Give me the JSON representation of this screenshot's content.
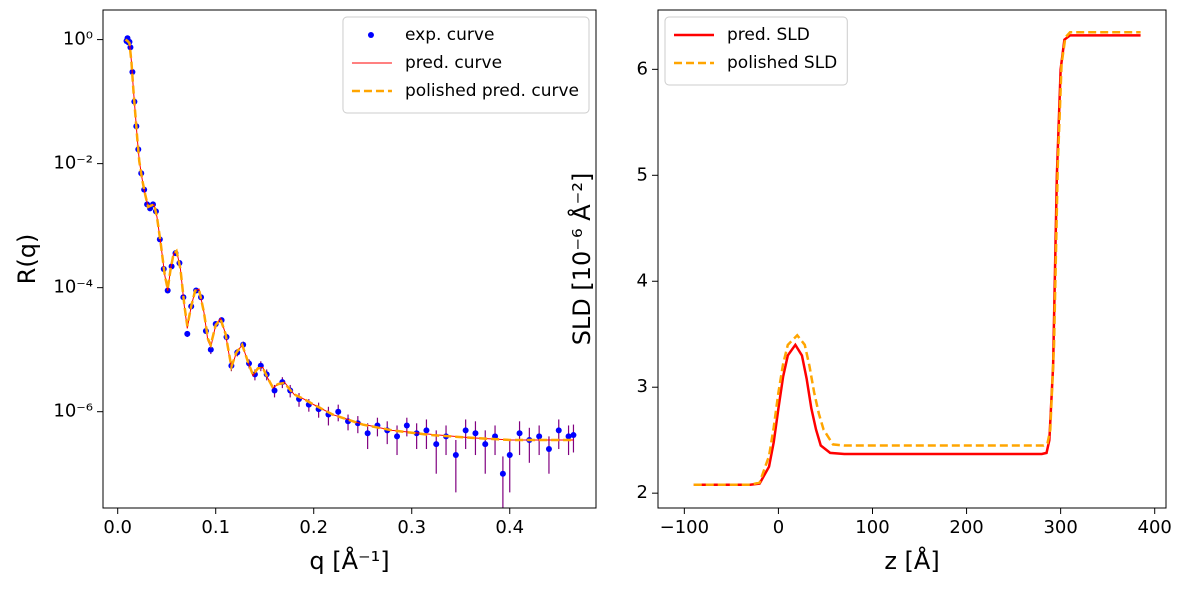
{
  "chart_data": [
    {
      "type": "scatter",
      "xlabel": "q [Å⁻¹]",
      "ylabel": "R(q)",
      "log_y": true,
      "legend": "upper right",
      "xlim": [
        -0.015,
        0.488
      ],
      "ylim": [
        2.8e-08,
        3.0
      ],
      "xticks": [
        {
          "value": 0,
          "label": "0.0"
        },
        0.1,
        0.2,
        0.3,
        0.4
      ],
      "yticks": [
        {
          "value": 1e-06,
          "label": "10⁻⁶"
        },
        {
          "value": 0.0001,
          "label": "10⁻⁴"
        },
        {
          "value": 0.01,
          "label": "10⁻²"
        },
        {
          "value": 1,
          "label": "10⁰"
        }
      ],
      "series": [
        {
          "name": "exp. curve",
          "style": "markers",
          "color": "#0000ff",
          "error_color": "#800080",
          "x": [
            0.009,
            0.01,
            0.011,
            0.012,
            0.013,
            0.015,
            0.017,
            0.019,
            0.021,
            0.024,
            0.027,
            0.03,
            0.033,
            0.036,
            0.039,
            0.043,
            0.047,
            0.051,
            0.055,
            0.059,
            0.063,
            0.067,
            0.071,
            0.075,
            0.08,
            0.085,
            0.09,
            0.095,
            0.1,
            0.106,
            0.111,
            0.116,
            0.122,
            0.128,
            0.134,
            0.14,
            0.146,
            0.152,
            0.16,
            0.168,
            0.176,
            0.185,
            0.195,
            0.205,
            0.215,
            0.225,
            0.235,
            0.245,
            0.255,
            0.265,
            0.275,
            0.285,
            0.295,
            0.305,
            0.315,
            0.325,
            0.335,
            0.345,
            0.355,
            0.365,
            0.375,
            0.385,
            0.393,
            0.4,
            0.41,
            0.42,
            0.43,
            0.44,
            0.45,
            0.46,
            0.465
          ],
          "values": [
            0.95,
            1.05,
            0.9,
            0.92,
            0.75,
            0.3,
            0.1,
            0.04,
            0.017,
            0.007,
            0.0038,
            0.0022,
            0.0019,
            0.0022,
            0.0017,
            0.0006,
            0.0002,
            9e-05,
            0.00022,
            0.00036,
            0.00025,
            7e-05,
            1.8e-05,
            5e-05,
            9e-05,
            7e-05,
            2e-05,
            1e-05,
            2.6e-05,
            3e-05,
            1.6e-05,
            5.5e-06,
            9e-06,
            1.2e-05,
            6e-06,
            4e-06,
            5.5e-06,
            4e-06,
            2.2e-06,
            3e-06,
            2.2e-06,
            1.6e-06,
            1.3e-06,
            1.1e-06,
            9e-07,
            1e-06,
            7e-07,
            6.5e-07,
            4.5e-07,
            6e-07,
            5e-07,
            4e-07,
            6e-07,
            4.5e-07,
            5e-07,
            3e-07,
            4e-07,
            2e-07,
            5e-07,
            4.5e-07,
            3e-07,
            4e-07,
            1e-07,
            2e-07,
            4.5e-07,
            3.5e-07,
            4e-07,
            2.5e-07,
            5e-07,
            4e-07,
            4.2e-07
          ],
          "errors": [
            0.05,
            0.05,
            0.05,
            0.05,
            0.04,
            0.02,
            0.005,
            0.002,
            0.001,
            0.0004,
            0.0002,
            0.0001,
            0.0001,
            0.0001,
            0.0001,
            3e-05,
            1e-05,
            6e-06,
            1e-05,
            2e-05,
            1.5e-05,
            5e-06,
            2e-06,
            4e-06,
            6e-06,
            5e-06,
            2e-06,
            1.5e-06,
            2.5e-06,
            3e-06,
            2e-06,
            1e-06,
            1.2e-06,
            1.5e-06,
            1e-06,
            8e-07,
            1e-06,
            8e-07,
            5e-07,
            6e-07,
            5e-07,
            4e-07,
            3e-07,
            3e-07,
            3e-07,
            3e-07,
            2e-07,
            2e-07,
            2e-07,
            2e-07,
            2e-07,
            2e-07,
            2e-07,
            2e-07,
            2.5e-07,
            2e-07,
            2e-07,
            1.5e-07,
            2.5e-07,
            2.5e-07,
            2e-07,
            2e-07,
            9e-08,
            1.5e-07,
            2.5e-07,
            2e-07,
            2e-07,
            1.5e-07,
            2.5e-07,
            2e-07,
            2e-07
          ]
        },
        {
          "name": "pred. curve",
          "style": "line",
          "color": "#ff0000",
          "width": 1,
          "x": [
            0.008,
            0.01,
            0.012,
            0.014,
            0.016,
            0.018,
            0.02,
            0.022,
            0.025,
            0.028,
            0.031,
            0.034,
            0.037,
            0.04,
            0.044,
            0.048,
            0.051,
            0.054,
            0.057,
            0.06,
            0.064,
            0.068,
            0.071,
            0.075,
            0.079,
            0.083,
            0.088,
            0.092,
            0.095,
            0.1,
            0.105,
            0.11,
            0.116,
            0.121,
            0.127,
            0.133,
            0.138,
            0.143,
            0.148,
            0.153,
            0.158,
            0.164,
            0.17,
            0.18,
            0.19,
            0.2,
            0.22,
            0.25,
            0.28,
            0.32,
            0.36,
            0.4,
            0.465
          ],
          "values": [
            1.0,
            0.955,
            0.891,
            0.447,
            0.158,
            0.063,
            0.025,
            0.0112,
            0.0056,
            0.0032,
            0.002,
            0.0021,
            0.0022,
            0.0014,
            0.0005,
            0.00016,
            8.9e-05,
            0.0002,
            0.00035,
            0.0004,
            0.0002,
            5e-05,
            2.2e-05,
            5e-05,
            8.9e-05,
            9.5e-05,
            4e-05,
            1.4e-05,
            1.1e-05,
            2.5e-05,
            3.2e-05,
            1.8e-05,
            5e-06,
            8.9e-06,
            1.2e-05,
            6.3e-06,
            3.8e-06,
            5e-06,
            5.2e-06,
            3.5e-06,
            2.4e-06,
            2.8e-06,
            3e-06,
            1.9e-06,
            1.6e-06,
            1.3e-06,
            8.9e-07,
            6.3e-07,
            5e-07,
            4.3e-07,
            3.8e-07,
            3.5e-07,
            3.5e-07
          ]
        },
        {
          "name": "polished pred. curve",
          "style": "line",
          "dash": true,
          "color": "#ffa500",
          "width": 2.5,
          "x": [
            0.008,
            0.01,
            0.012,
            0.014,
            0.016,
            0.018,
            0.02,
            0.022,
            0.025,
            0.028,
            0.031,
            0.034,
            0.037,
            0.04,
            0.044,
            0.048,
            0.051,
            0.054,
            0.057,
            0.06,
            0.064,
            0.068,
            0.071,
            0.075,
            0.079,
            0.083,
            0.088,
            0.092,
            0.095,
            0.1,
            0.105,
            0.11,
            0.116,
            0.121,
            0.127,
            0.133,
            0.138,
            0.143,
            0.148,
            0.153,
            0.158,
            0.164,
            0.17,
            0.18,
            0.19,
            0.2,
            0.22,
            0.25,
            0.28,
            0.32,
            0.36,
            0.4,
            0.465
          ],
          "values": [
            1.0,
            0.95,
            0.88,
            0.44,
            0.155,
            0.062,
            0.025,
            0.011,
            0.0055,
            0.0032,
            0.002,
            0.0021,
            0.0022,
            0.0014,
            0.0005,
            0.00016,
            9.5e-05,
            0.0002,
            0.00035,
            0.00039,
            0.0002,
            5.2e-05,
            2.4e-05,
            5e-05,
            8.9e-05,
            9.3e-05,
            4e-05,
            1.5e-05,
            1.2e-05,
            2.5e-05,
            3.1e-05,
            1.8e-05,
            5.3e-06,
            8.9e-06,
            1.2e-05,
            6.3e-06,
            3.9e-06,
            5e-06,
            5.1e-06,
            3.5e-06,
            2.5e-06,
            2.8e-06,
            2.9e-06,
            1.9e-06,
            1.6e-06,
            1.3e-06,
            8.9e-07,
            6.2e-07,
            5e-07,
            4.2e-07,
            3.8e-07,
            3.5e-07,
            3.5e-07
          ]
        }
      ]
    },
    {
      "type": "line",
      "xlabel": "z [Å]",
      "ylabel": "SLD [10⁻⁶ Å⁻²]",
      "log_y": false,
      "legend": "upper left",
      "xlim": [
        -128,
        412
      ],
      "ylim": [
        1.86,
        6.56
      ],
      "xticks": [
        {
          "value": -100,
          "label": "−100"
        },
        0,
        100,
        200,
        300,
        400
      ],
      "yticks": [
        2,
        3,
        4,
        5,
        6
      ],
      "series": [
        {
          "name": "pred. SLD",
          "style": "line",
          "color": "#ff0000",
          "width": 2.5,
          "x": [
            -90,
            -30,
            -20,
            -10,
            -5,
            0,
            5,
            10,
            18,
            25,
            30,
            35,
            40,
            45,
            55,
            70,
            280,
            285,
            288,
            292,
            296,
            300,
            304,
            310,
            385
          ],
          "values": [
            2.08,
            2.08,
            2.09,
            2.25,
            2.48,
            2.8,
            3.1,
            3.3,
            3.4,
            3.3,
            3.08,
            2.8,
            2.6,
            2.45,
            2.38,
            2.37,
            2.37,
            2.38,
            2.5,
            3.2,
            5.0,
            6.0,
            6.28,
            6.32,
            6.32
          ]
        },
        {
          "name": "polished SLD",
          "style": "line",
          "dash": true,
          "color": "#ffa500",
          "width": 2.5,
          "x": [
            -90,
            -30,
            -20,
            -10,
            -5,
            0,
            5,
            10,
            20,
            28,
            33,
            38,
            43,
            48,
            58,
            70,
            282,
            286,
            289,
            293,
            297,
            301,
            305,
            310,
            385
          ],
          "values": [
            2.08,
            2.08,
            2.1,
            2.35,
            2.62,
            2.95,
            3.22,
            3.4,
            3.49,
            3.4,
            3.2,
            2.95,
            2.75,
            2.6,
            2.46,
            2.45,
            2.45,
            2.47,
            2.6,
            3.4,
            5.1,
            6.05,
            6.3,
            6.35,
            6.35
          ]
        }
      ]
    }
  ]
}
